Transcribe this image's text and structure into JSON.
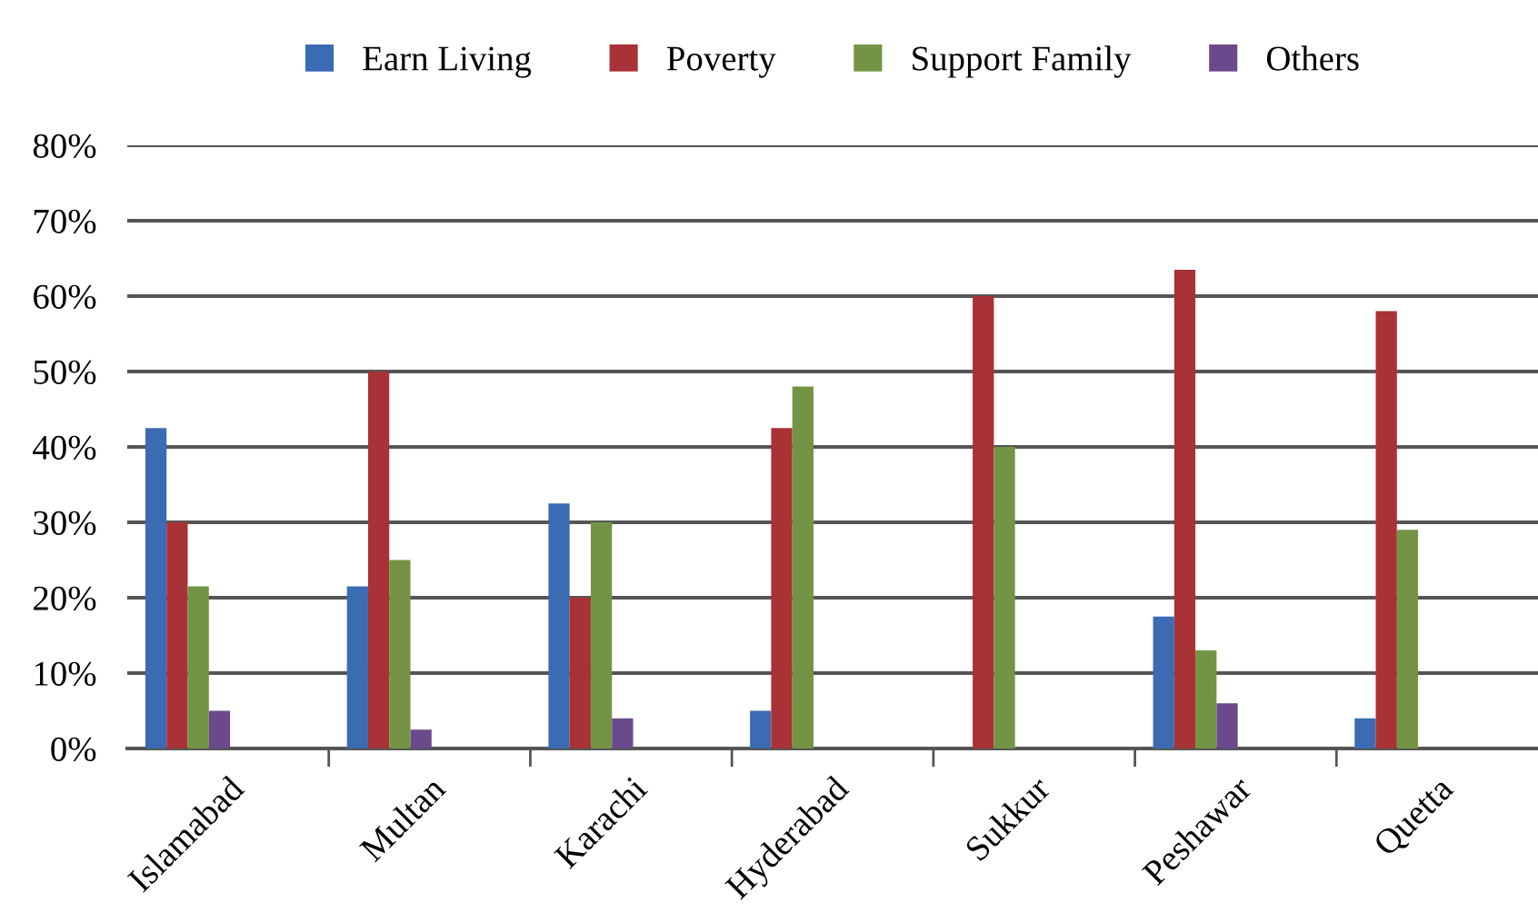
{
  "chart_data": {
    "type": "bar",
    "categories": [
      "Islamabad",
      "Multan",
      "Karachi",
      "Hyderabad",
      "Sukkur",
      "Peshawar",
      "Quetta"
    ],
    "series": [
      {
        "name": "Earn Living",
        "color": "#3b6bb3",
        "values": [
          42.5,
          21.5,
          32.5,
          5,
          null,
          17.5,
          4
        ]
      },
      {
        "name": "Poverty",
        "color": "#a93236",
        "values": [
          30,
          50,
          20,
          42.5,
          60,
          63.5,
          58
        ]
      },
      {
        "name": "Support Family",
        "color": "#739444",
        "values": [
          21.5,
          25,
          30,
          48,
          40,
          13,
          29
        ]
      },
      {
        "name": "Others",
        "color": "#6a4a8c",
        "values": [
          5,
          2.5,
          4,
          null,
          null,
          6,
          null
        ]
      }
    ],
    "ylim": [
      0,
      80
    ],
    "yticks": [
      {
        "value": 0,
        "label": "0%"
      },
      {
        "value": 10,
        "label": "10%"
      },
      {
        "value": 20,
        "label": "20%"
      },
      {
        "value": 30,
        "label": "30%"
      },
      {
        "value": 40,
        "label": "40%"
      },
      {
        "value": 50,
        "label": "50%"
      },
      {
        "value": 60,
        "label": "60%"
      },
      {
        "value": 70,
        "label": "70%"
      },
      {
        "value": 80,
        "label": "80%"
      }
    ],
    "grid": "y",
    "legend": "top"
  }
}
